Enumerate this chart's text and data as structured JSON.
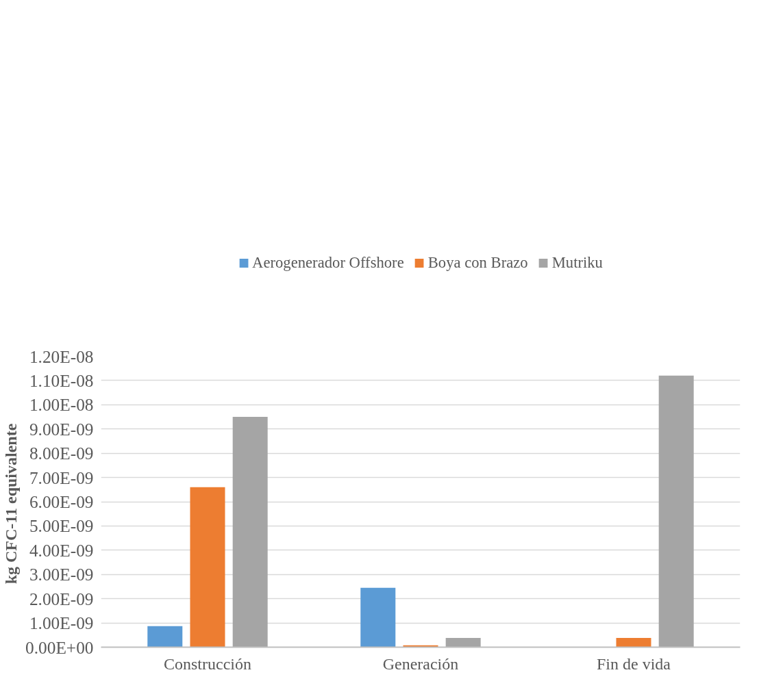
{
  "chart_data": {
    "type": "bar",
    "ylabel": "kg  CFC-11 equivalente",
    "categories": [
      "Construcción",
      "Generación",
      "Fin de vida"
    ],
    "series": [
      {
        "name": "Aerogenerador Offshore",
        "color": "#5b9bd5",
        "values": [
          8.7e-10,
          2.45e-09,
          0
        ]
      },
      {
        "name": "Boya con Brazo",
        "color": "#ed7d31",
        "values": [
          6.6e-09,
          8e-11,
          3.8e-10
        ]
      },
      {
        "name": "Mutriku",
        "color": "#a5a5a5",
        "values": [
          9.5e-09,
          3.8e-10,
          1.12e-08
        ]
      }
    ],
    "ylim": [
      0,
      1.2e-08
    ],
    "yticks": [
      {
        "value": 0,
        "label": "0.00E+00"
      },
      {
        "value": 1e-09,
        "label": "1.00E-09"
      },
      {
        "value": 2e-09,
        "label": "2.00E-09"
      },
      {
        "value": 3e-09,
        "label": "3.00E-09"
      },
      {
        "value": 4e-09,
        "label": "4.00E-09"
      },
      {
        "value": 5e-09,
        "label": "5.00E-09"
      },
      {
        "value": 6e-09,
        "label": "6.00E-09"
      },
      {
        "value": 7e-09,
        "label": "7.00E-09"
      },
      {
        "value": 8e-09,
        "label": "8.00E-09"
      },
      {
        "value": 9e-09,
        "label": "9.00E-09"
      },
      {
        "value": 1e-08,
        "label": "1.00E-08"
      },
      {
        "value": 1.1e-08,
        "label": "1.10E-08"
      },
      {
        "value": 1.2e-08,
        "label": "1.20E-08"
      }
    ],
    "grid": "y",
    "legend": "top"
  }
}
